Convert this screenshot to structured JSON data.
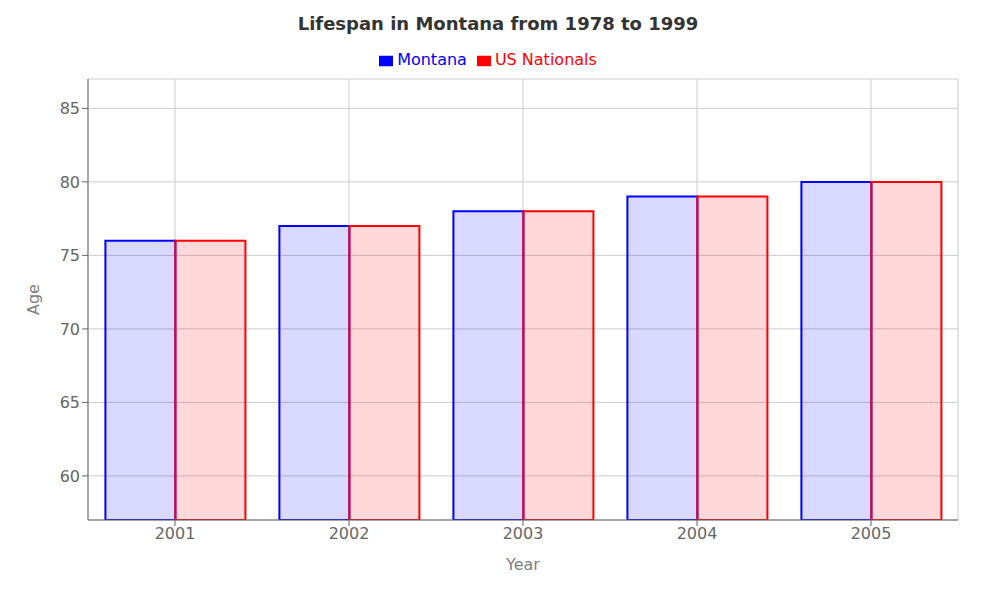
{
  "chart_data": {
    "type": "bar",
    "title": "Lifespan in Montana from 1978 to 1999",
    "xlabel": "Year",
    "ylabel": "Age",
    "categories": [
      "2001",
      "2002",
      "2003",
      "2004",
      "2005"
    ],
    "series": [
      {
        "name": "Montana",
        "color": "#0000ff",
        "values": [
          76,
          77,
          78,
          79,
          80
        ]
      },
      {
        "name": "US Nationals",
        "color": "#ff0000",
        "values": [
          76,
          77,
          78,
          79,
          80
        ]
      }
    ],
    "ylim": [
      57,
      87
    ],
    "yticks": [
      60,
      65,
      70,
      75,
      80,
      85
    ],
    "grid": true,
    "legend": "top"
  }
}
